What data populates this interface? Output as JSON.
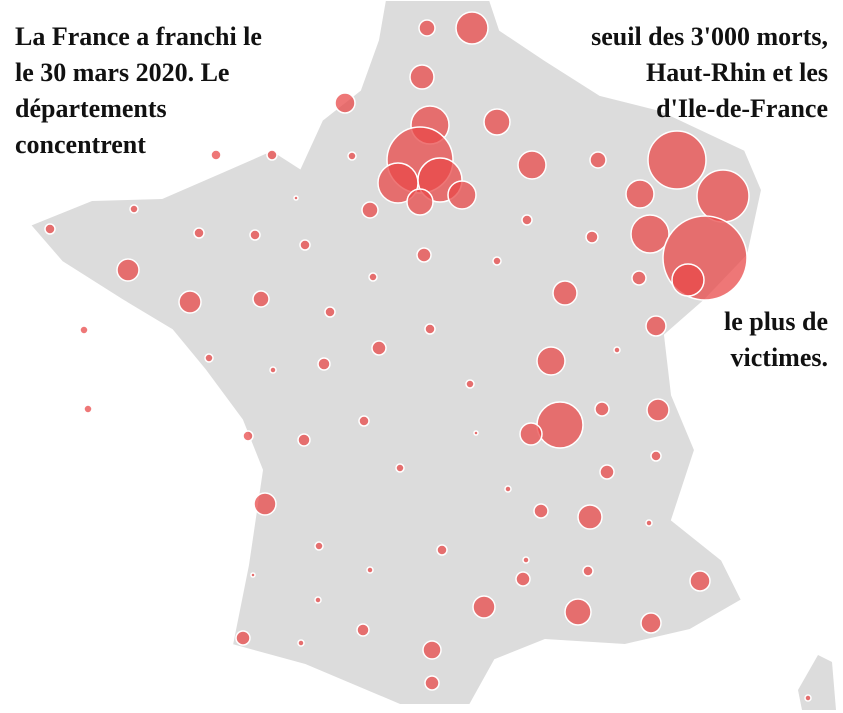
{
  "annotations": [
    {
      "lines": [
        "La France a franchi le",
        "le 30 mars 2020. Le",
        "départements",
        "concentrent"
      ]
    },
    {
      "lines": [
        "seuil des 3'000 morts,",
        "Haut-Rhin et les",
        "d'Ile-de-France"
      ]
    },
    {
      "lines": [
        "le plus de",
        "victimes."
      ]
    }
  ]
}
